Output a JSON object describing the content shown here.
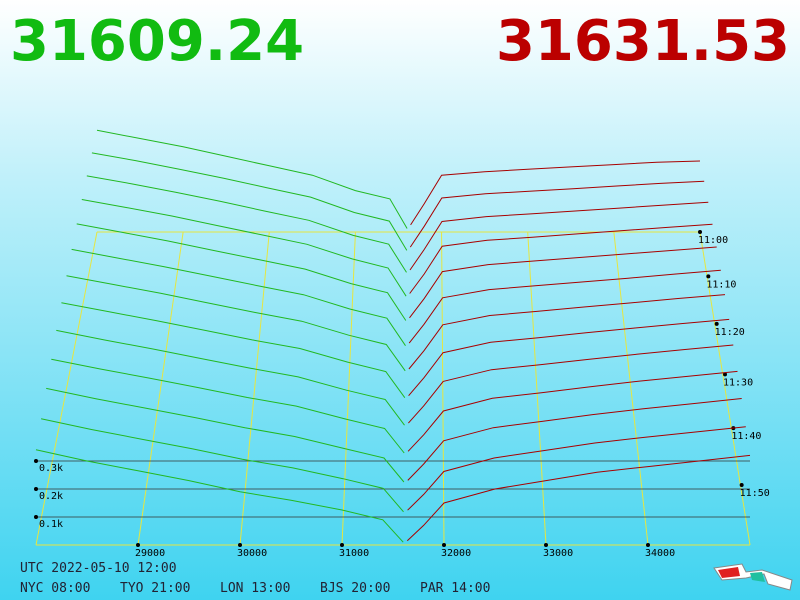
{
  "chart_data": {
    "type": "depth3d",
    "bid": 31609.24,
    "ask": 31631.53,
    "bid_color": "#22b822",
    "ask_color": "#a80000",
    "headline_bid_color": "#11bb11",
    "headline_ask_color": "#bb0000",
    "grid_color": "#e6e640",
    "xlim": [
      28000,
      35000
    ],
    "xticks": [
      29000,
      30000,
      31000,
      32000,
      33000,
      34000
    ],
    "yticks": [
      {
        "value": 100,
        "label": "0.1k"
      },
      {
        "value": 200,
        "label": "0.2k"
      },
      {
        "value": 300,
        "label": "0.3k"
      }
    ],
    "zlim": [
      "11:00",
      "12:00"
    ],
    "zticks": [
      "11:00",
      "11:10",
      "11:20",
      "11:30",
      "11:40",
      "11:50"
    ],
    "bid_prices": [
      28000,
      28500,
      29000,
      29500,
      30000,
      30500,
      31000,
      31400,
      31600
    ],
    "ask_prices": [
      31640,
      31800,
      32000,
      32500,
      33000,
      33500,
      34000,
      34500,
      35000
    ],
    "snapshots": [
      {
        "time": "11:00",
        "bids": [
          430,
          395,
          360,
          320,
          280,
          240,
          175,
          140,
          15
        ],
        "asks": [
          30,
          120,
          240,
          255,
          265,
          275,
          285,
          295,
          300
        ]
      },
      {
        "time": "11:05",
        "bids": [
          420,
          388,
          352,
          315,
          275,
          236,
          172,
          136,
          14
        ],
        "asks": [
          28,
          115,
          232,
          250,
          260,
          271,
          282,
          293,
          302
        ]
      },
      {
        "time": "11:10",
        "bids": [
          412,
          380,
          345,
          308,
          268,
          230,
          168,
          132,
          16
        ],
        "asks": [
          26,
          110,
          225,
          245,
          256,
          268,
          280,
          292,
          304
        ]
      },
      {
        "time": "11:15",
        "bids": [
          405,
          372,
          338,
          300,
          262,
          224,
          165,
          128,
          14
        ],
        "asks": [
          25,
          104,
          216,
          240,
          252,
          266,
          279,
          292,
          305
        ]
      },
      {
        "time": "11:20",
        "bids": [
          398,
          364,
          330,
          292,
          255,
          218,
          160,
          124,
          13
        ],
        "asks": [
          24,
          100,
          208,
          236,
          250,
          264,
          278,
          292,
          306
        ]
      },
      {
        "time": "11:25",
        "bids": [
          390,
          356,
          322,
          285,
          248,
          212,
          156,
          120,
          12
        ],
        "asks": [
          22,
          96,
          200,
          232,
          247,
          262,
          277,
          293,
          308
        ]
      },
      {
        "time": "11:30",
        "bids": [
          382,
          348,
          314,
          277,
          240,
          206,
          152,
          116,
          14
        ],
        "asks": [
          21,
          92,
          192,
          228,
          244,
          261,
          277,
          294,
          309
        ]
      },
      {
        "time": "11:35",
        "bids": [
          375,
          340,
          306,
          270,
          233,
          200,
          148,
          112,
          12
        ],
        "asks": [
          20,
          88,
          184,
          224,
          241,
          260,
          278,
          295,
          311
        ]
      },
      {
        "time": "11:40",
        "bids": [
          368,
          332,
          298,
          262,
          226,
          193,
          143,
          108,
          11
        ],
        "asks": [
          19,
          84,
          176,
          220,
          239,
          259,
          278,
          296,
          313
        ]
      },
      {
        "time": "11:45",
        "bids": [
          360,
          324,
          290,
          255,
          218,
          186,
          138,
          103,
          12
        ],
        "asks": [
          18,
          80,
          168,
          215,
          236,
          258,
          279,
          297,
          315
        ]
      },
      {
        "time": "11:50",
        "bids": [
          354,
          316,
          282,
          247,
          210,
          178,
          134,
          99,
          11
        ],
        "asks": [
          17,
          77,
          162,
          210,
          234,
          258,
          279,
          298,
          317
        ]
      },
      {
        "time": "11:55",
        "bids": [
          347,
          308,
          273,
          238,
          200,
          169,
          130,
          95,
          10
        ],
        "asks": [
          16,
          73,
          156,
          205,
          232,
          259,
          280,
          299,
          318
        ]
      },
      {
        "time": "12:00",
        "bids": [
          340,
          300,
          265,
          230,
          190,
          160,
          125,
          90,
          10
        ],
        "asks": [
          15,
          70,
          150,
          200,
          230,
          260,
          280,
          300,
          320
        ]
      }
    ],
    "utc_time": "UTC 2022-05-10 12:00",
    "timezones": [
      "NYC 08:00",
      "TYO 21:00",
      "LON 13:00",
      "BJS 20:00",
      "PAR 14:00"
    ]
  }
}
